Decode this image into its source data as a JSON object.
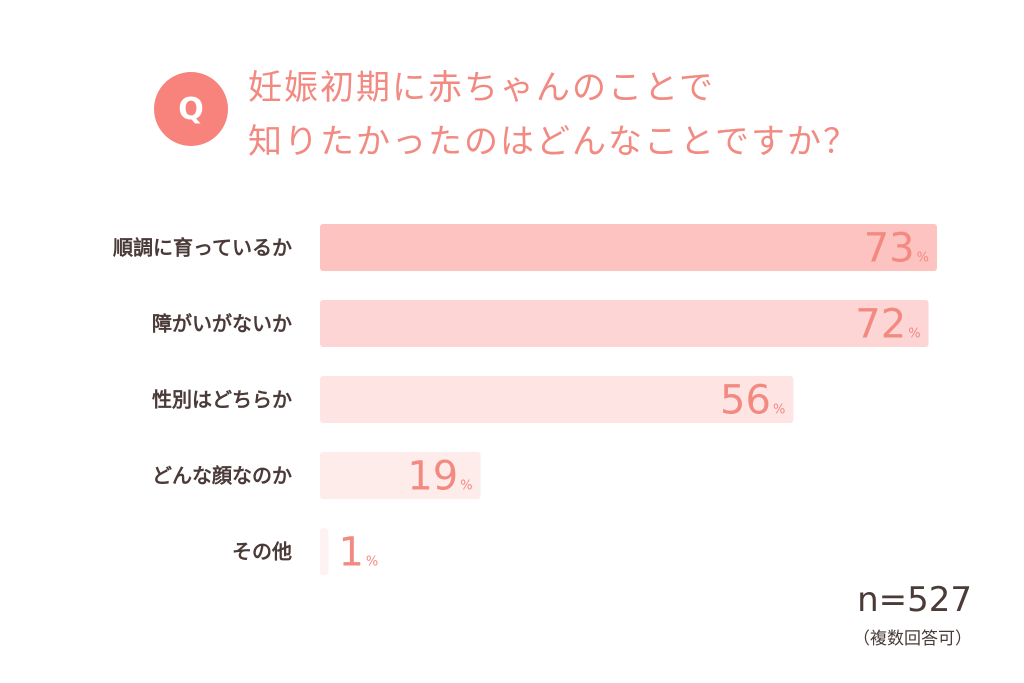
{
  "header": {
    "q_mark": "Q",
    "title_line1": "妊娠初期に赤ちゃんのことで",
    "title_line2": "知りたかったのはどんなことですか？"
  },
  "footer": {
    "sample_size": "n=527",
    "note": "（複数回答可）"
  },
  "chart_data": {
    "type": "bar",
    "orientation": "horizontal",
    "categories": [
      "順調に育っているか",
      "障がいがないか",
      "性別はどちらか",
      "どんな顔なのか",
      "その他"
    ],
    "values": [
      73,
      72,
      56,
      19,
      1
    ],
    "value_unit": "%",
    "xlim": [
      0,
      73
    ],
    "grid": false,
    "legend": "none",
    "colors": [
      "#fdc3c1",
      "#fdd5d4",
      "#fee4e3",
      "#feeceb",
      "#fef2f2"
    ]
  }
}
